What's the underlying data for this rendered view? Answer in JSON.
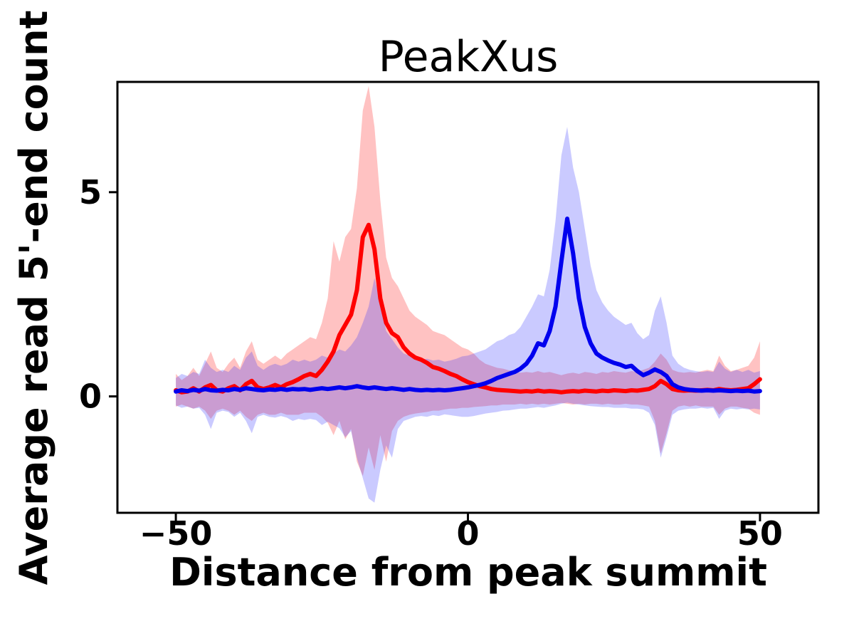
{
  "chart_data": {
    "type": "line",
    "title": "PeakXus",
    "xlabel": "Distance from peak summit",
    "ylabel": "Average read 5'-end count",
    "xlim": [
      -60,
      60
    ],
    "ylim": [
      -2.85,
      7.7
    ],
    "grid": false,
    "legend": null,
    "background": "#ffffff",
    "axis_color": "#000000",
    "x_ticks": [
      -50,
      0,
      50
    ],
    "x_tick_labels": [
      "−50",
      "0",
      "50"
    ],
    "y_ticks": [
      0,
      5
    ],
    "y_tick_labels": [
      "0",
      "5"
    ],
    "x": [
      -50,
      -49,
      -48,
      -47,
      -46,
      -45,
      -44,
      -43,
      -42,
      -41,
      -40,
      -39,
      -38,
      -37,
      -36,
      -35,
      -34,
      -33,
      -32,
      -31,
      -30,
      -29,
      -28,
      -27,
      -26,
      -25,
      -24,
      -23,
      -22,
      -21,
      -20,
      -19,
      -18,
      -17,
      -16,
      -15,
      -14,
      -13,
      -12,
      -11,
      -10,
      -9,
      -8,
      -7,
      -6,
      -5,
      -4,
      -3,
      -2,
      -1,
      0,
      1,
      2,
      3,
      4,
      5,
      6,
      7,
      8,
      9,
      10,
      11,
      12,
      13,
      14,
      15,
      16,
      17,
      18,
      19,
      20,
      21,
      22,
      23,
      24,
      25,
      26,
      27,
      28,
      29,
      30,
      31,
      32,
      33,
      34,
      35,
      36,
      37,
      38,
      39,
      40,
      41,
      42,
      43,
      44,
      45,
      46,
      47,
      48,
      49,
      50
    ],
    "series": [
      {
        "name": "red",
        "color": "#ff0000",
        "linewidth": 6,
        "values": [
          0.15,
          0.1,
          0.12,
          0.2,
          0.12,
          0.22,
          0.28,
          0.15,
          0.12,
          0.2,
          0.25,
          0.15,
          0.3,
          0.38,
          0.22,
          0.18,
          0.22,
          0.28,
          0.22,
          0.3,
          0.35,
          0.42,
          0.5,
          0.55,
          0.5,
          0.65,
          0.85,
          1.1,
          1.5,
          1.75,
          2.0,
          2.6,
          3.9,
          4.2,
          3.6,
          2.4,
          1.8,
          1.55,
          1.45,
          1.2,
          1.05,
          0.95,
          0.9,
          0.82,
          0.72,
          0.68,
          0.62,
          0.55,
          0.5,
          0.42,
          0.35,
          0.3,
          0.25,
          0.22,
          0.18,
          0.16,
          0.15,
          0.14,
          0.13,
          0.12,
          0.13,
          0.12,
          0.14,
          0.12,
          0.13,
          0.12,
          0.1,
          0.12,
          0.13,
          0.12,
          0.14,
          0.13,
          0.12,
          0.14,
          0.13,
          0.15,
          0.14,
          0.13,
          0.15,
          0.14,
          0.16,
          0.18,
          0.25,
          0.38,
          0.3,
          0.18,
          0.15,
          0.14,
          0.15,
          0.14,
          0.15,
          0.16,
          0.15,
          0.18,
          0.16,
          0.15,
          0.16,
          0.18,
          0.2,
          0.3,
          0.42
        ]
      },
      {
        "name": "blue",
        "color": "#0000ee",
        "linewidth": 6,
        "values": [
          0.12,
          0.15,
          0.13,
          0.16,
          0.14,
          0.18,
          0.15,
          0.14,
          0.16,
          0.15,
          0.18,
          0.16,
          0.2,
          0.18,
          0.16,
          0.15,
          0.17,
          0.16,
          0.18,
          0.16,
          0.18,
          0.17,
          0.18,
          0.16,
          0.18,
          0.2,
          0.18,
          0.2,
          0.22,
          0.2,
          0.22,
          0.25,
          0.22,
          0.2,
          0.22,
          0.2,
          0.18,
          0.2,
          0.18,
          0.16,
          0.18,
          0.16,
          0.15,
          0.16,
          0.15,
          0.16,
          0.15,
          0.16,
          0.18,
          0.2,
          0.22,
          0.25,
          0.28,
          0.32,
          0.38,
          0.45,
          0.5,
          0.55,
          0.6,
          0.68,
          0.8,
          1.0,
          1.3,
          1.25,
          1.6,
          2.2,
          3.3,
          4.35,
          3.5,
          2.4,
          1.7,
          1.3,
          1.05,
          0.95,
          0.88,
          0.82,
          0.78,
          0.72,
          0.75,
          0.62,
          0.52,
          0.58,
          0.66,
          0.6,
          0.5,
          0.3,
          0.22,
          0.18,
          0.16,
          0.15,
          0.14,
          0.15,
          0.14,
          0.15,
          0.14,
          0.13,
          0.14,
          0.13,
          0.14,
          0.12,
          0.13
        ]
      }
    ],
    "bands": [
      {
        "name": "red-confidence-band",
        "color": "#ff0000",
        "opacity": 0.24,
        "upper": [
          0.55,
          0.4,
          0.5,
          0.7,
          0.5,
          0.8,
          1.1,
          0.7,
          0.6,
          0.8,
          0.95,
          0.7,
          1.1,
          1.35,
          0.9,
          0.8,
          0.9,
          1.0,
          0.9,
          1.05,
          1.15,
          1.25,
          1.35,
          1.45,
          1.4,
          1.8,
          2.4,
          3.8,
          3.3,
          3.9,
          4.1,
          5.1,
          7.0,
          7.6,
          6.6,
          4.8,
          3.4,
          2.9,
          2.7,
          2.4,
          2.1,
          1.95,
          1.85,
          1.75,
          1.6,
          1.55,
          1.5,
          1.4,
          1.3,
          1.2,
          1.15,
          1.05,
          0.9,
          0.8,
          0.75,
          0.7,
          0.68,
          0.64,
          0.62,
          0.58,
          0.6,
          0.58,
          0.62,
          0.58,
          0.6,
          0.56,
          0.52,
          0.56,
          0.58,
          0.55,
          0.6,
          0.58,
          0.55,
          0.6,
          0.58,
          0.62,
          0.6,
          0.58,
          0.62,
          0.6,
          0.65,
          0.7,
          0.85,
          1.05,
          0.9,
          0.65,
          0.6,
          0.58,
          0.6,
          0.58,
          0.62,
          0.65,
          0.62,
          1.0,
          0.75,
          0.62,
          0.65,
          0.7,
          0.75,
          0.95,
          1.35
        ],
        "lower": [
          -0.25,
          -0.2,
          -0.25,
          -0.3,
          -0.25,
          -0.35,
          -0.55,
          -0.35,
          -0.3,
          -0.35,
          -0.45,
          -0.35,
          -0.5,
          -0.6,
          -0.45,
          -0.4,
          -0.45,
          -0.45,
          -0.4,
          -0.45,
          -0.45,
          -0.45,
          -0.4,
          -0.4,
          -0.4,
          -0.5,
          -0.65,
          -0.95,
          -0.6,
          -1.05,
          -0.8,
          -1.6,
          -1.95,
          -1.25,
          -1.8,
          -0.95,
          -1.6,
          -0.85,
          -0.6,
          -0.5,
          -0.45,
          -0.42,
          -0.4,
          -0.38,
          -0.35,
          -0.35,
          -0.32,
          -0.3,
          -0.3,
          -0.28,
          -0.28,
          -0.26,
          -0.25,
          -0.24,
          -0.22,
          -0.22,
          -0.2,
          -0.2,
          -0.2,
          -0.18,
          -0.2,
          -0.18,
          -0.2,
          -0.18,
          -0.2,
          -0.18,
          -0.16,
          -0.18,
          -0.2,
          -0.18,
          -0.2,
          -0.18,
          -0.18,
          -0.2,
          -0.18,
          -0.2,
          -0.2,
          -0.18,
          -0.2,
          -0.2,
          -0.22,
          -0.25,
          -0.6,
          -1.4,
          -0.9,
          -0.35,
          -0.25,
          -0.22,
          -0.25,
          -0.22,
          -0.25,
          -0.25,
          -0.25,
          -0.45,
          -0.3,
          -0.25,
          -0.25,
          -0.28,
          -0.3,
          -0.4,
          -0.45
        ]
      },
      {
        "name": "blue-confidence-band",
        "color": "#3333ff",
        "opacity": 0.26,
        "upper": [
          0.45,
          0.55,
          0.5,
          0.6,
          0.55,
          0.9,
          0.7,
          0.6,
          0.65,
          0.6,
          0.75,
          0.65,
          0.95,
          1.1,
          0.75,
          0.65,
          0.75,
          0.8,
          0.75,
          0.8,
          0.9,
          0.85,
          0.9,
          0.85,
          0.9,
          1.0,
          0.95,
          1.05,
          1.15,
          1.1,
          1.25,
          1.45,
          1.8,
          2.2,
          2.9,
          2.3,
          1.6,
          1.4,
          1.2,
          1.05,
          1.0,
          0.95,
          0.9,
          0.92,
          0.88,
          0.9,
          0.85,
          0.88,
          0.92,
          0.98,
          1.0,
          1.05,
          1.1,
          1.15,
          1.25,
          1.35,
          1.4,
          1.5,
          1.55,
          1.7,
          1.95,
          2.2,
          2.5,
          2.45,
          3.1,
          4.3,
          5.9,
          6.6,
          5.6,
          5.0,
          4.1,
          3.2,
          2.6,
          2.3,
          2.1,
          1.95,
          1.85,
          1.75,
          1.8,
          1.55,
          1.4,
          1.5,
          2.1,
          2.45,
          1.8,
          1.0,
          0.8,
          0.7,
          0.65,
          0.62,
          0.6,
          0.62,
          0.6,
          0.85,
          0.68,
          0.6,
          0.65,
          0.6,
          0.65,
          0.58,
          0.62
        ],
        "lower": [
          -0.22,
          -0.28,
          -0.25,
          -0.3,
          -0.28,
          -0.45,
          -0.8,
          -0.4,
          -0.35,
          -0.38,
          -0.5,
          -0.4,
          -0.6,
          -0.9,
          -0.5,
          -0.45,
          -0.5,
          -0.52,
          -0.48,
          -0.52,
          -0.6,
          -0.55,
          -0.58,
          -0.55,
          -0.58,
          -0.7,
          -0.62,
          -0.7,
          -0.78,
          -1.0,
          -0.85,
          -1.5,
          -2.0,
          -2.5,
          -2.6,
          -1.8,
          -1.2,
          -1.5,
          -0.8,
          -0.6,
          -0.55,
          -0.5,
          -0.48,
          -0.5,
          -0.46,
          -0.48,
          -0.44,
          -0.46,
          -0.48,
          -0.5,
          -0.5,
          -0.48,
          -0.45,
          -0.42,
          -0.4,
          -0.38,
          -0.35,
          -0.34,
          -0.32,
          -0.3,
          -0.3,
          -0.28,
          -0.26,
          -0.28,
          -0.25,
          -0.22,
          -0.18,
          -0.15,
          -0.18,
          -0.2,
          -0.22,
          -0.24,
          -0.25,
          -0.26,
          -0.26,
          -0.28,
          -0.28,
          -0.28,
          -0.3,
          -0.3,
          -0.32,
          -0.4,
          -0.7,
          -1.5,
          -1.0,
          -0.45,
          -0.35,
          -0.32,
          -0.3,
          -0.3,
          -0.28,
          -0.3,
          -0.28,
          -0.55,
          -0.35,
          -0.3,
          -0.32,
          -0.3,
          -0.32,
          -0.3,
          -0.32
        ]
      }
    ]
  }
}
